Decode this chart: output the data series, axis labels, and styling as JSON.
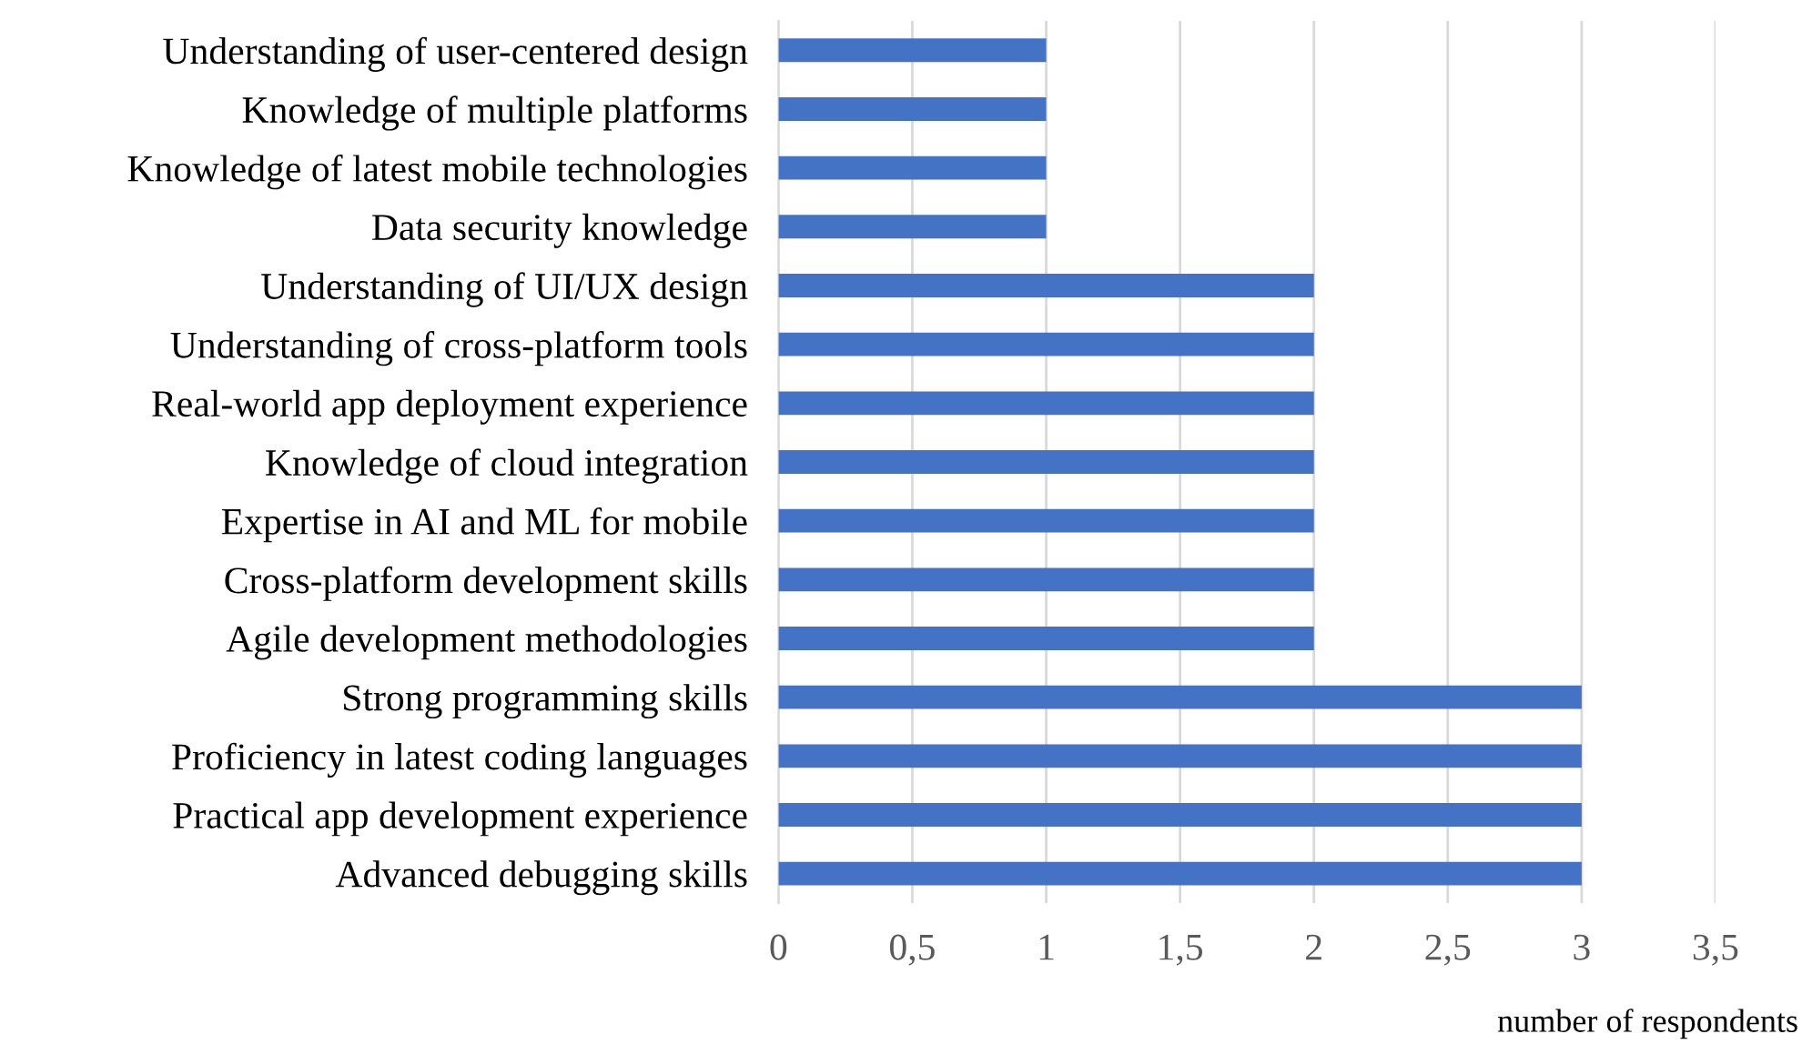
{
  "chart_data": {
    "type": "bar",
    "orientation": "horizontal",
    "xlabel": "number of respondents",
    "categories": [
      "Understanding of user-centered design",
      "Knowledge of multiple platforms",
      "Knowledge of latest mobile technologies",
      "Data security knowledge",
      "Understanding of UI/UX design",
      "Understanding of cross-platform tools",
      "Real-world app deployment experience",
      "Knowledge of cloud integration",
      "Expertise in AI and ML for mobile",
      "Cross-platform development skills",
      "Agile development methodologies",
      "Strong programming skills",
      "Proficiency in latest coding languages",
      "Practical app development experience",
      "Advanced debugging skills"
    ],
    "values": [
      1,
      1,
      1,
      1,
      2,
      2,
      2,
      2,
      2,
      2,
      2,
      3,
      3,
      3,
      3
    ],
    "color": "#4472c4",
    "xlim": [
      0,
      3.5
    ],
    "xticks": [
      0,
      {
        "value": 0.5,
        "label": "0,5"
      },
      1,
      {
        "value": 1.5,
        "label": "1,5"
      },
      2,
      {
        "value": 2.5,
        "label": "2,5"
      },
      3,
      {
        "value": 3.5,
        "label": "3,5"
      }
    ],
    "grid": "x",
    "legend": false
  }
}
